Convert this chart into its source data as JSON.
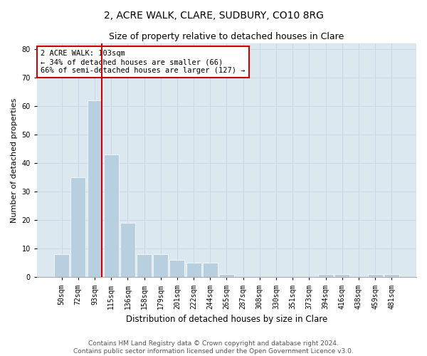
{
  "title": "2, ACRE WALK, CLARE, SUDBURY, CO10 8RG",
  "subtitle": "Size of property relative to detached houses in Clare",
  "xlabel": "Distribution of detached houses by size in Clare",
  "ylabel": "Number of detached properties",
  "categories": [
    "50sqm",
    "72sqm",
    "93sqm",
    "115sqm",
    "136sqm",
    "158sqm",
    "179sqm",
    "201sqm",
    "222sqm",
    "244sqm",
    "265sqm",
    "287sqm",
    "308sqm",
    "330sqm",
    "351sqm",
    "373sqm",
    "394sqm",
    "416sqm",
    "438sqm",
    "459sqm",
    "481sqm"
  ],
  "values": [
    8,
    35,
    62,
    43,
    19,
    8,
    8,
    6,
    5,
    5,
    1,
    0,
    0,
    0,
    0,
    0,
    1,
    1,
    0,
    1,
    1
  ],
  "bar_color": "#b8cfe0",
  "bar_edge_color": "#ffffff",
  "property_line_bar_idx": 2,
  "property_line_color": "#cc0000",
  "annotation_text": "2 ACRE WALK: 103sqm\n← 34% of detached houses are smaller (66)\n66% of semi-detached houses are larger (127) →",
  "annotation_box_color": "#cc0000",
  "ylim": [
    0,
    82
  ],
  "yticks": [
    0,
    10,
    20,
    30,
    40,
    50,
    60,
    70,
    80
  ],
  "grid_color": "#c8d8e8",
  "bg_color": "#dce8f0",
  "footer1": "Contains HM Land Registry data © Crown copyright and database right 2024.",
  "footer2": "Contains public sector information licensed under the Open Government Licence v3.0.",
  "title_fontsize": 10,
  "subtitle_fontsize": 9,
  "xlabel_fontsize": 8.5,
  "ylabel_fontsize": 8,
  "tick_fontsize": 7,
  "footer_fontsize": 6.5
}
